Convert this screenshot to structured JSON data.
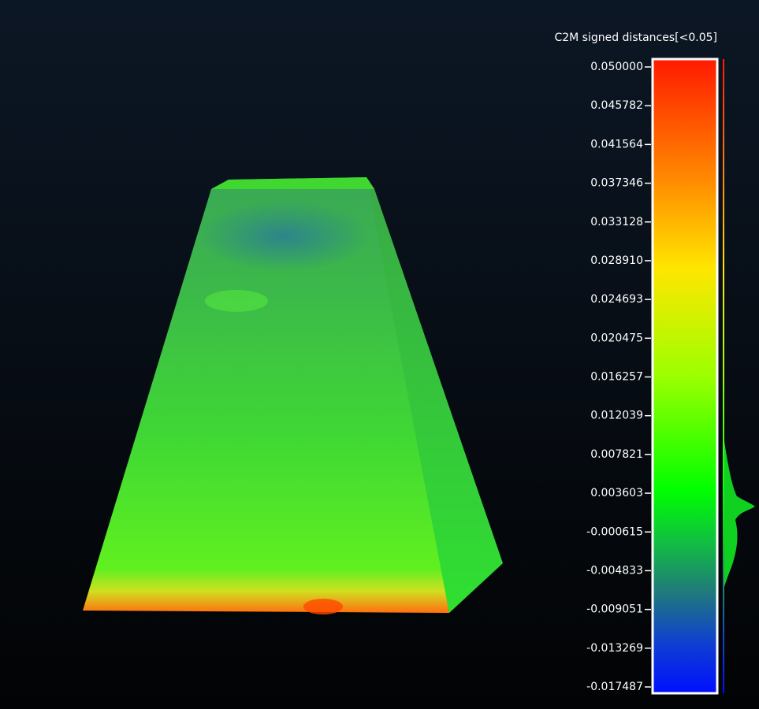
{
  "viewer": {
    "scale_title": "C2M signed distances[<0.05]",
    "scale_labels": [
      "0.050000",
      "0.045782",
      "0.041564",
      "0.037346",
      "0.033128",
      "0.028910",
      "0.024693",
      "0.020475",
      "0.016257",
      "0.012039",
      "0.007821",
      "0.003603",
      "-0.000615",
      "-0.004833",
      "-0.009051",
      "-0.013269",
      "-0.017487"
    ]
  }
}
